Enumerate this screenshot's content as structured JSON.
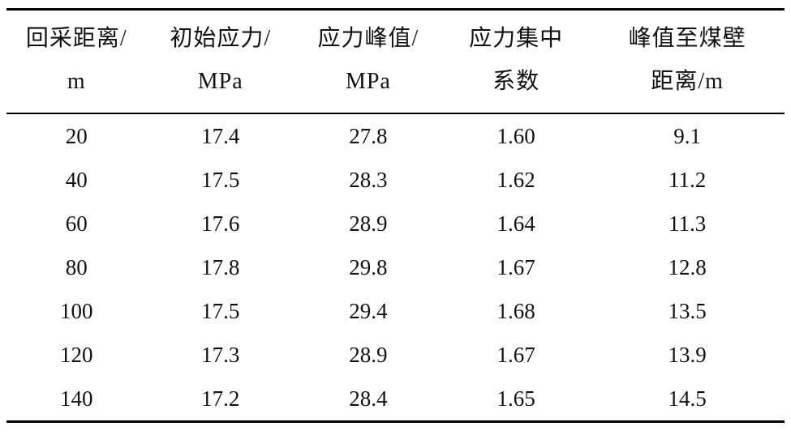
{
  "table": {
    "title_semantic": "abutment-stress-statistics-table",
    "headers": [
      "回采距离/\nm",
      "初始应力/\nMPa",
      "应力峰值/\nMPa",
      "应力集中\n系数",
      "峰值至煤壁\n距离/m"
    ],
    "rows": [
      [
        "20",
        "17.4",
        "27.8",
        "1.60",
        "9.1"
      ],
      [
        "40",
        "17.5",
        "28.3",
        "1.62",
        "11.2"
      ],
      [
        "60",
        "17.6",
        "28.9",
        "1.64",
        "11.3"
      ],
      [
        "80",
        "17.8",
        "29.8",
        "1.67",
        "12.8"
      ],
      [
        "100",
        "17.5",
        "29.4",
        "1.68",
        "13.5"
      ],
      [
        "120",
        "17.3",
        "28.9",
        "1.67",
        "13.9"
      ],
      [
        "140",
        "17.2",
        "28.4",
        "1.65",
        "14.5"
      ]
    ]
  },
  "chart_data": {
    "type": "table",
    "columns": [
      "回采距离/m",
      "初始应力/MPa",
      "应力峰值/MPa",
      "应力集中系数",
      "峰值至煤壁距离/m"
    ],
    "x": [
      20,
      40,
      60,
      80,
      100,
      120,
      140
    ],
    "series": [
      {
        "name": "初始应力/MPa",
        "values": [
          17.4,
          17.5,
          17.6,
          17.8,
          17.5,
          17.3,
          17.2
        ]
      },
      {
        "name": "应力峰值/MPa",
        "values": [
          27.8,
          28.3,
          28.9,
          29.8,
          29.4,
          28.9,
          28.4
        ]
      },
      {
        "name": "应力集中系数",
        "values": [
          1.6,
          1.62,
          1.64,
          1.67,
          1.68,
          1.67,
          1.65
        ]
      },
      {
        "name": "峰值至煤壁距离/m",
        "values": [
          9.1,
          11.2,
          11.3,
          12.8,
          13.5,
          13.9,
          14.5
        ]
      }
    ]
  }
}
